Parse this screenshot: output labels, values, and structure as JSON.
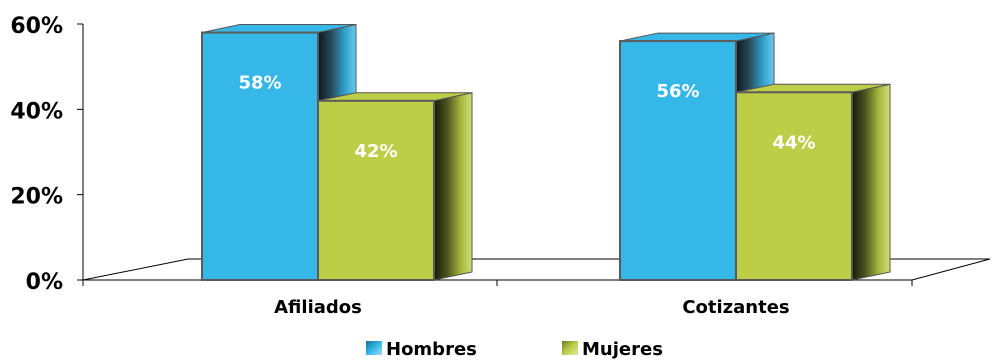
{
  "chart_data": {
    "type": "bar",
    "categories": [
      "Afiliados",
      "Cotizantes"
    ],
    "series": [
      {
        "name": "Hombres",
        "values": [
          58,
          56
        ],
        "labels": [
          "58%",
          "56%"
        ],
        "color": "#35b7e8"
      },
      {
        "name": "Mujeres",
        "values": [
          42,
          44
        ],
        "labels": [
          "42%",
          "44%"
        ],
        "color": "#bccd48"
      }
    ],
    "ylim": [
      0,
      60
    ],
    "yticks": [
      {
        "value": 0,
        "label": "0%"
      },
      {
        "value": 20,
        "label": "20%"
      },
      {
        "value": 40,
        "label": "40%"
      },
      {
        "value": 60,
        "label": "60%"
      }
    ],
    "legend_position": "bottom",
    "grid": false,
    "style": "3d-clustered-bar"
  }
}
